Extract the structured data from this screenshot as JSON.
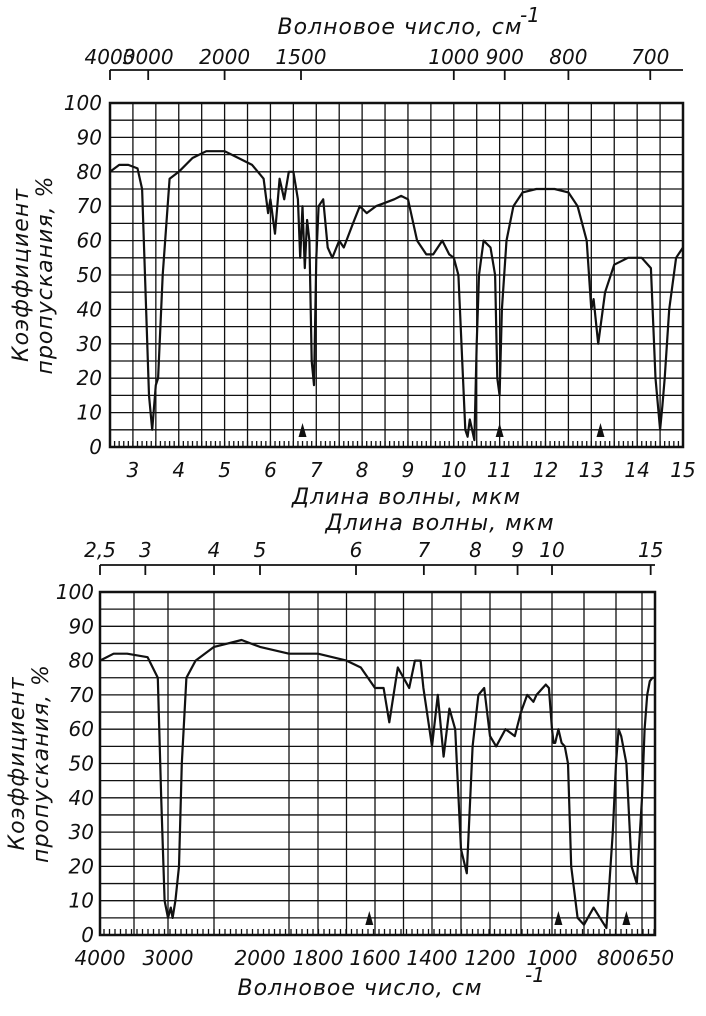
{
  "chart_data": [
    {
      "type": "line",
      "top_axis_label": "Волновое число, см",
      "top_axis_unit_exp": "-1",
      "top_ticks": [
        "4000",
        "3000",
        "2000",
        "1500",
        "1000",
        "900",
        "800",
        "700"
      ],
      "xlabel": "Длина волны, мкм",
      "ylabel": [
        "Коэффициент",
        "пропускания, %"
      ],
      "x_ticks": [
        "3",
        "4",
        "5",
        "6",
        "7",
        "8",
        "9",
        "10",
        "11",
        "12",
        "13",
        "14",
        "15"
      ],
      "y_ticks": [
        "0",
        "10",
        "20",
        "30",
        "40",
        "50",
        "60",
        "70",
        "80",
        "90",
        "100"
      ],
      "xlim": [
        2.5,
        15
      ],
      "ylim": [
        0,
        100
      ],
      "grid": true,
      "arrows_at_um": [
        6.7,
        11.0,
        13.2
      ],
      "series": [
        {
          "x": [
            2.5,
            2.7,
            2.9,
            3.1,
            3.2,
            3.35,
            3.42,
            3.5,
            3.55,
            3.65,
            3.8,
            4.0,
            4.3,
            4.6,
            5.0,
            5.3,
            5.6,
            5.85,
            5.95,
            6.0,
            6.1,
            6.2,
            6.3,
            6.4,
            6.5,
            6.6,
            6.65,
            6.7,
            6.75,
            6.8,
            6.85,
            6.9,
            6.95,
            7.0,
            7.05,
            7.15,
            7.25,
            7.35,
            7.5,
            7.6,
            7.8,
            7.95,
            8.1,
            8.3,
            8.5,
            8.7,
            8.85,
            9.0,
            9.2,
            9.4,
            9.55,
            9.75,
            9.9,
            10.0,
            10.1,
            10.2,
            10.25,
            10.3,
            10.35,
            10.4,
            10.45,
            10.5,
            10.55,
            10.65,
            10.8,
            10.9,
            10.95,
            11.0,
            11.05,
            11.15,
            11.3,
            11.5,
            11.8,
            12.2,
            12.5,
            12.7,
            12.9,
            13.0,
            13.05,
            13.15,
            13.3,
            13.5,
            13.8,
            14.1,
            14.3,
            14.4,
            14.5,
            14.55,
            14.6,
            14.7,
            14.85,
            15.0
          ],
          "y": [
            80,
            82,
            82,
            81,
            75,
            15,
            5,
            18,
            20,
            50,
            78,
            80,
            84,
            86,
            86,
            84,
            82,
            78,
            68,
            72,
            62,
            78,
            72,
            80,
            80,
            72,
            55,
            70,
            52,
            66,
            60,
            25,
            18,
            55,
            70,
            72,
            58,
            55,
            60,
            58,
            65,
            70,
            68,
            70,
            71,
            72,
            73,
            72,
            60,
            56,
            56,
            60,
            56,
            55,
            50,
            20,
            5,
            3,
            8,
            5,
            2,
            30,
            50,
            60,
            58,
            50,
            20,
            15,
            40,
            60,
            70,
            74,
            75,
            75,
            74,
            70,
            60,
            40,
            43,
            30,
            45,
            53,
            55,
            55,
            52,
            20,
            5,
            12,
            20,
            40,
            55,
            58
          ]
        }
      ]
    },
    {
      "type": "line",
      "top_axis_label": "Длина волны, мкм",
      "top_ticks": [
        "2,5",
        "3",
        "4",
        "5",
        "6",
        "7",
        "8",
        "9",
        "10",
        "15"
      ],
      "xlabel": "Волновое число, см",
      "xlabel_unit_exp": "-1",
      "ylabel": [
        "Коэффициент",
        "пропускания, %"
      ],
      "x_ticks": [
        "4000",
        "3000",
        "2000",
        "1800",
        "1600",
        "1400",
        "1200",
        "1000",
        "800",
        "650"
      ],
      "y_ticks": [
        "0",
        "10",
        "20",
        "30",
        "40",
        "50",
        "60",
        "70",
        "80",
        "90",
        "100"
      ],
      "xlim": [
        4000,
        650
      ],
      "ylim": [
        0,
        100
      ],
      "grid": true,
      "arrows_at_cm": [
        1620,
        980,
        760
      ],
      "series": [
        {
          "x": [
            4000,
            3800,
            3600,
            3300,
            3150,
            3100,
            3050,
            3000,
            2970,
            2950,
            2920,
            2880,
            2850,
            2800,
            2700,
            2500,
            2200,
            2000,
            1900,
            1800,
            1700,
            1650,
            1600,
            1570,
            1550,
            1520,
            1480,
            1460,
            1440,
            1430,
            1400,
            1380,
            1360,
            1340,
            1320,
            1300,
            1280,
            1260,
            1240,
            1220,
            1200,
            1180,
            1150,
            1120,
            1100,
            1080,
            1060,
            1050,
            1040,
            1030,
            1020,
            1010,
            1000,
            995,
            990,
            980,
            970,
            960,
            950,
            940,
            920,
            900,
            870,
            850,
            830,
            810,
            800,
            790,
            780,
            760,
            740,
            720,
            700,
            690,
            680,
            670,
            660,
            650
          ],
          "y": [
            80,
            82,
            82,
            81,
            75,
            40,
            10,
            5,
            8,
            5,
            10,
            20,
            50,
            75,
            80,
            84,
            86,
            84,
            82,
            82,
            80,
            78,
            72,
            72,
            62,
            78,
            72,
            80,
            80,
            72,
            55,
            70,
            52,
            66,
            60,
            25,
            18,
            55,
            70,
            72,
            58,
            55,
            60,
            58,
            65,
            70,
            68,
            70,
            71,
            72,
            73,
            72,
            60,
            56,
            56,
            60,
            56,
            55,
            50,
            20,
            5,
            3,
            8,
            5,
            2,
            30,
            50,
            60,
            58,
            50,
            20,
            15,
            40,
            60,
            70,
            74,
            75,
            75
          ]
        }
      ]
    }
  ]
}
